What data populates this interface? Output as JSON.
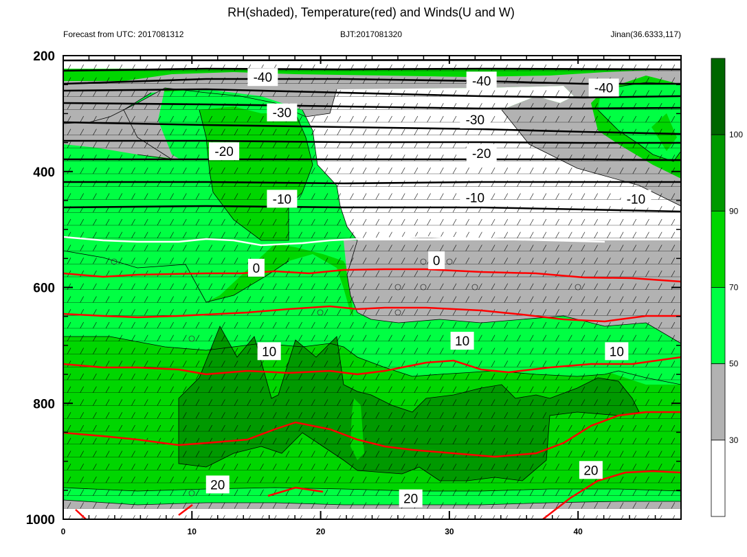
{
  "title": "RH(shaded), Temperature(red) and Winds(U and W)",
  "subtitle_left": "Forecast from UTC: 2017081312",
  "subtitle_center": "BJT:2017081320",
  "subtitle_right": "Jinan(36.6333,117)",
  "colors": {
    "rh_lt30": "#ffffff",
    "rh_30_50": "#b2b2b2",
    "rh_50_70": "#00ff43",
    "rh_70_90": "#00d600",
    "rh_90_100": "#009900",
    "rh_gt100": "#006600",
    "temperature_line": "#ff0000",
    "upper_contour": "#000000",
    "freezing_line": "#ffffff"
  },
  "chart_data": {
    "type": "heatmap",
    "x_range": [
      0,
      48
    ],
    "y_range": [
      1000,
      200
    ],
    "y_reversed": true,
    "x_ticks": [
      0,
      10,
      20,
      30,
      40
    ],
    "y_ticks": [
      200,
      400,
      600,
      800,
      1000
    ],
    "colorbar_ticks": [
      30,
      50,
      70,
      90,
      100
    ],
    "temperature_contour_labels": [
      {
        "text": "-40",
        "x": 15.5,
        "y": 237
      },
      {
        "text": "-40",
        "x": 32.5,
        "y": 243
      },
      {
        "text": "-40",
        "x": 42.0,
        "y": 255
      },
      {
        "text": "-30",
        "x": 17.0,
        "y": 298
      },
      {
        "text": "-30",
        "x": 32.0,
        "y": 310
      },
      {
        "text": "-20",
        "x": 12.5,
        "y": 365
      },
      {
        "text": "-20",
        "x": 32.5,
        "y": 368
      },
      {
        "text": "-10",
        "x": 17.0,
        "y": 447
      },
      {
        "text": "-10",
        "x": 32.0,
        "y": 445
      },
      {
        "text": "-10",
        "x": 44.5,
        "y": 447
      },
      {
        "text": "0",
        "x": 15.0,
        "y": 566
      },
      {
        "text": "0",
        "x": 29.0,
        "y": 553
      },
      {
        "text": "10",
        "x": 16.0,
        "y": 710
      },
      {
        "text": "10",
        "x": 31.0,
        "y": 692
      },
      {
        "text": "10",
        "x": 43.0,
        "y": 710
      },
      {
        "text": "20",
        "x": 12.0,
        "y": 940
      },
      {
        "text": "20",
        "x": 27.0,
        "y": 964
      },
      {
        "text": "20",
        "x": 41.0,
        "y": 915
      }
    ]
  }
}
